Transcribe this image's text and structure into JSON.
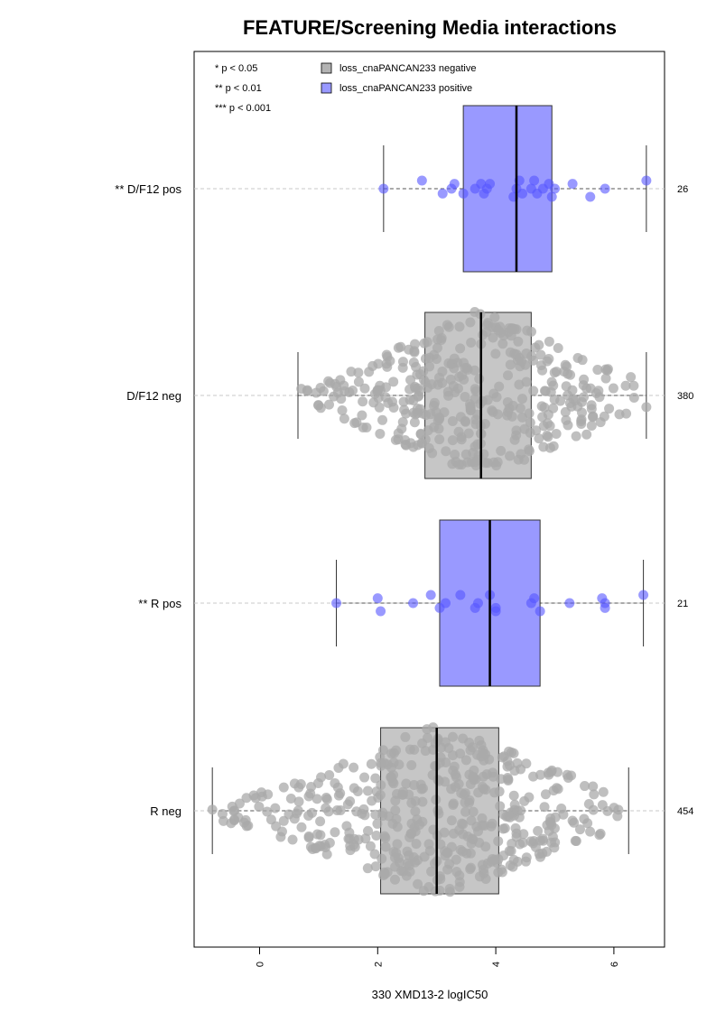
{
  "chart_data": {
    "type": "box",
    "title": "FEATURE/Screening Media interactions",
    "xlabel": "330 XMD13-2 logIC50",
    "ylabel": "",
    "xlim": [
      -1.1,
      6.85
    ],
    "xticks": [
      "0",
      "2",
      "4",
      "6"
    ],
    "orientation": "horizontal",
    "grid": false,
    "legend_position": "top-left",
    "significance_notes": [
      "* p < 0.05",
      "** p < 0.01",
      "*** p < 0.001"
    ],
    "legend": [
      {
        "label": "loss_cnaPANCAN233 negative",
        "color": "#b3b3b3"
      },
      {
        "label": "loss_cnaPANCAN233 positive",
        "color": "#9999ff"
      }
    ],
    "groups": [
      {
        "label": "** D/F12 pos",
        "n": "26",
        "positive": true,
        "whisker_low": 2.1,
        "q1": 3.45,
        "median": 4.35,
        "q3": 4.95,
        "whisker_high": 6.55,
        "points": [
          2.1,
          2.75,
          3.1,
          3.25,
          3.3,
          3.45,
          3.65,
          3.75,
          3.8,
          3.85,
          3.9,
          4.3,
          4.35,
          4.4,
          4.45,
          4.6,
          4.65,
          4.7,
          4.8,
          4.9,
          4.95,
          5.0,
          5.3,
          5.6,
          5.85,
          6.55
        ]
      },
      {
        "label": "D/F12 neg",
        "n": "380",
        "positive": false,
        "whisker_low": 0.65,
        "q1": 2.8,
        "median": 3.75,
        "q3": 4.6,
        "whisker_high": 6.55,
        "outliers": [
          6.55
        ]
      },
      {
        "label": "** R pos",
        "n": "21",
        "positive": true,
        "whisker_low": 1.3,
        "q1": 3.05,
        "median": 3.9,
        "q3": 4.75,
        "whisker_high": 6.5,
        "points": [
          1.3,
          2.0,
          2.05,
          2.6,
          2.9,
          3.05,
          3.15,
          3.4,
          3.65,
          3.7,
          3.9,
          4.0,
          4.6,
          4.65,
          4.75,
          5.25,
          5.8,
          5.85,
          5.85,
          6.5,
          4.0
        ]
      },
      {
        "label": "R neg",
        "n": "454",
        "positive": false,
        "whisker_low": -0.8,
        "q1": 2.05,
        "median": 3.0,
        "q3": 4.05,
        "whisker_high": 6.25,
        "outliers": [
          -0.8
        ]
      }
    ]
  }
}
